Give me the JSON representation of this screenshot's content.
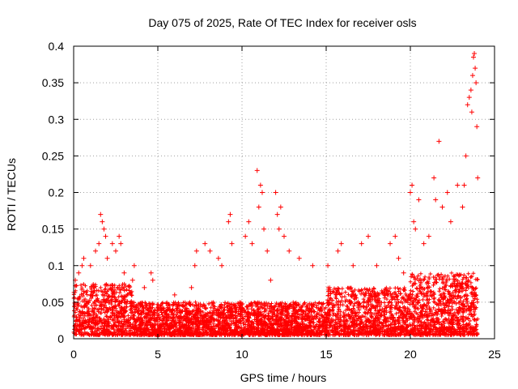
{
  "chart_data": {
    "type": "scatter",
    "title": "Day 075 of 2025, Rate Of TEC Index for receiver osls",
    "xlabel": "GPS time / hours",
    "ylabel": "ROTI / TECUs",
    "xlim": [
      0,
      25
    ],
    "ylim": [
      0,
      0.4
    ],
    "x_ticks": [
      0,
      5,
      10,
      15,
      20,
      25
    ],
    "x_tick_labels": [
      "0",
      "5",
      "10",
      "15",
      "20",
      "25"
    ],
    "y_ticks": [
      0,
      0.05,
      0.1,
      0.15,
      0.2,
      0.25,
      0.3,
      0.35,
      0.4
    ],
    "y_tick_labels": [
      "0",
      "0.05",
      "0.1",
      "0.15",
      "0.2",
      "0.25",
      "0.3",
      "0.35",
      "0.4"
    ],
    "grid": true,
    "marker": "+",
    "marker_color": "#ff0000",
    "points": [
      [
        0.1,
        0.08
      ],
      [
        0.3,
        0.09
      ],
      [
        0.5,
        0.1
      ],
      [
        0.6,
        0.11
      ],
      [
        1.0,
        0.1
      ],
      [
        1.3,
        0.12
      ],
      [
        1.5,
        0.13
      ],
      [
        1.6,
        0.17
      ],
      [
        1.7,
        0.16
      ],
      [
        1.8,
        0.15
      ],
      [
        1.9,
        0.14
      ],
      [
        2.0,
        0.11
      ],
      [
        2.3,
        0.13
      ],
      [
        2.5,
        0.12
      ],
      [
        2.7,
        0.14
      ],
      [
        2.8,
        0.13
      ],
      [
        3.0,
        0.09
      ],
      [
        3.5,
        0.08
      ],
      [
        3.6,
        0.1
      ],
      [
        4.2,
        0.07
      ],
      [
        4.6,
        0.09
      ],
      [
        4.7,
        0.08
      ],
      [
        6.0,
        0.06
      ],
      [
        7.0,
        0.07
      ],
      [
        7.2,
        0.1
      ],
      [
        7.3,
        0.12
      ],
      [
        7.8,
        0.13
      ],
      [
        8.1,
        0.12
      ],
      [
        8.6,
        0.11
      ],
      [
        8.8,
        0.1
      ],
      [
        9.2,
        0.16
      ],
      [
        9.3,
        0.17
      ],
      [
        9.4,
        0.13
      ],
      [
        10.2,
        0.14
      ],
      [
        10.4,
        0.16
      ],
      [
        10.6,
        0.13
      ],
      [
        10.9,
        0.23
      ],
      [
        11.0,
        0.18
      ],
      [
        11.1,
        0.21
      ],
      [
        11.2,
        0.2
      ],
      [
        11.3,
        0.15
      ],
      [
        11.5,
        0.12
      ],
      [
        11.7,
        0.08
      ],
      [
        12.0,
        0.2
      ],
      [
        12.1,
        0.17
      ],
      [
        12.2,
        0.15
      ],
      [
        12.3,
        0.18
      ],
      [
        12.5,
        0.14
      ],
      [
        12.8,
        0.12
      ],
      [
        13.4,
        0.11
      ],
      [
        14.2,
        0.1
      ],
      [
        15.1,
        0.1
      ],
      [
        15.7,
        0.12
      ],
      [
        15.9,
        0.13
      ],
      [
        16.6,
        0.1
      ],
      [
        17.1,
        0.13
      ],
      [
        17.5,
        0.14
      ],
      [
        18.0,
        0.1
      ],
      [
        18.8,
        0.13
      ],
      [
        19.1,
        0.14
      ],
      [
        19.3,
        0.11
      ],
      [
        19.6,
        0.09
      ],
      [
        20.0,
        0.2
      ],
      [
        20.1,
        0.21
      ],
      [
        20.2,
        0.16
      ],
      [
        20.3,
        0.15
      ],
      [
        20.5,
        0.19
      ],
      [
        20.8,
        0.13
      ],
      [
        21.1,
        0.14
      ],
      [
        21.4,
        0.22
      ],
      [
        21.5,
        0.19
      ],
      [
        21.7,
        0.27
      ],
      [
        21.9,
        0.18
      ],
      [
        22.2,
        0.2
      ],
      [
        22.4,
        0.16
      ],
      [
        22.8,
        0.21
      ],
      [
        23.1,
        0.18
      ],
      [
        23.2,
        0.21
      ],
      [
        23.3,
        0.25
      ],
      [
        23.4,
        0.32
      ],
      [
        23.5,
        0.33
      ],
      [
        23.6,
        0.34
      ],
      [
        23.65,
        0.31
      ],
      [
        23.7,
        0.36
      ],
      [
        23.75,
        0.385
      ],
      [
        23.8,
        0.39
      ],
      [
        23.85,
        0.37
      ],
      [
        23.9,
        0.35
      ],
      [
        23.95,
        0.29
      ],
      [
        24.0,
        0.22
      ]
    ]
  }
}
